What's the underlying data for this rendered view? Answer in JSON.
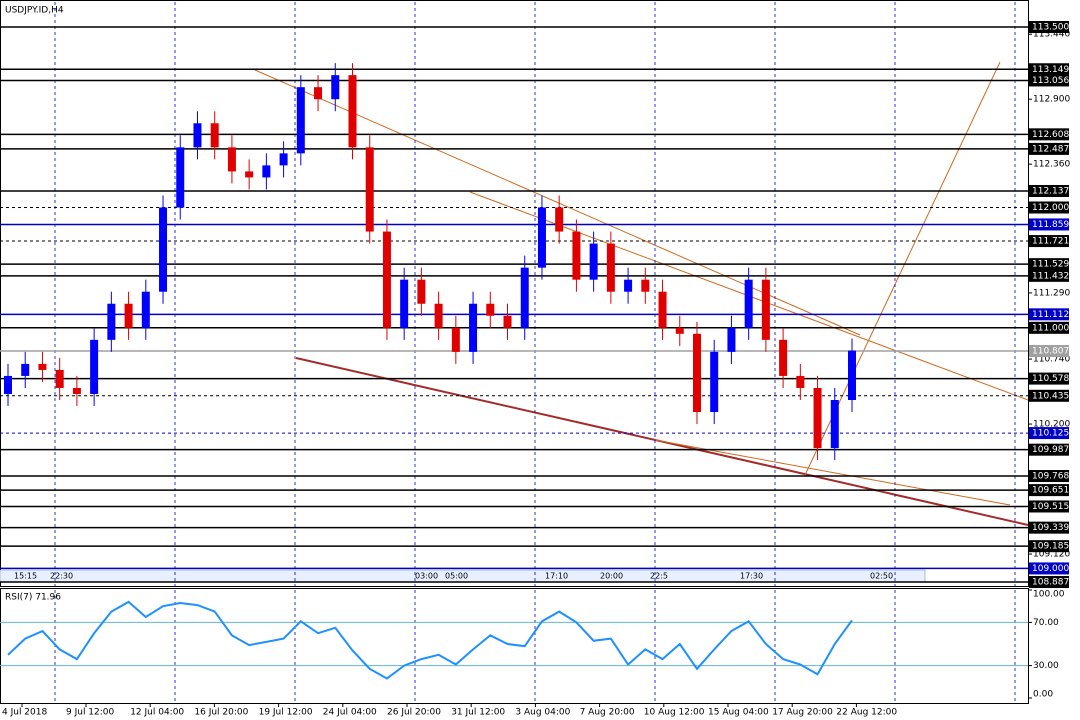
{
  "chart_data": {
    "type": "candlestick",
    "title": "USDJPY.ID,H4",
    "open": [
      110.45,
      110.6,
      110.7,
      110.65,
      110.5,
      110.45,
      110.9,
      111.2,
      111.0,
      111.3,
      112.0,
      112.5,
      112.7,
      112.5,
      112.3,
      112.25,
      112.35,
      112.45,
      113.0,
      112.9,
      113.1,
      112.5,
      111.8,
      111.0,
      111.4,
      111.2,
      111.0,
      110.8,
      111.2,
      111.1,
      111.0,
      111.5,
      112.0,
      111.8,
      111.4,
      111.7,
      111.3,
      111.4,
      111.3,
      111.0,
      110.95,
      110.3,
      110.8,
      111.0,
      111.4,
      110.9,
      110.6,
      110.5,
      110.0,
      110.4
    ],
    "high": [
      110.7,
      110.8,
      110.8,
      110.75,
      110.6,
      111.0,
      111.3,
      111.3,
      111.4,
      112.1,
      112.6,
      112.8,
      112.8,
      112.6,
      112.4,
      112.45,
      112.55,
      113.1,
      113.1,
      113.2,
      113.2,
      112.6,
      111.9,
      111.5,
      111.5,
      111.3,
      111.1,
      111.3,
      111.3,
      111.2,
      111.6,
      112.1,
      112.1,
      111.9,
      111.8,
      111.8,
      111.5,
      111.5,
      111.4,
      111.1,
      111.05,
      110.9,
      111.1,
      111.5,
      111.5,
      111.0,
      110.7,
      110.6,
      110.5,
      110.91
    ],
    "low": [
      110.35,
      110.5,
      110.55,
      110.4,
      110.35,
      110.35,
      110.8,
      110.9,
      110.9,
      111.2,
      111.9,
      112.4,
      112.4,
      112.2,
      112.15,
      112.15,
      112.25,
      112.35,
      112.8,
      112.8,
      112.4,
      111.7,
      110.9,
      110.9,
      111.1,
      110.9,
      110.7,
      110.7,
      111.0,
      110.9,
      110.9,
      111.4,
      111.7,
      111.3,
      111.3,
      111.2,
      111.2,
      111.2,
      110.9,
      110.85,
      110.2,
      110.2,
      110.7,
      110.9,
      110.8,
      110.5,
      110.4,
      109.9,
      109.9,
      110.3
    ],
    "close": [
      110.6,
      110.7,
      110.65,
      110.5,
      110.45,
      110.9,
      111.2,
      111.0,
      111.3,
      112.0,
      112.5,
      112.7,
      112.5,
      112.3,
      112.25,
      112.35,
      112.45,
      113.0,
      112.9,
      113.1,
      112.5,
      111.8,
      111.0,
      111.4,
      111.2,
      111.0,
      110.8,
      111.2,
      111.1,
      111.0,
      111.5,
      112.0,
      111.8,
      111.4,
      111.7,
      111.3,
      111.4,
      111.3,
      111.0,
      110.95,
      110.3,
      110.8,
      111.0,
      111.4,
      110.9,
      110.6,
      110.5,
      110.0,
      110.4,
      110.81
    ],
    "up_color": "#0000ff",
    "down_color": "#e00000",
    "ylim": [
      108.854,
      113.708
    ],
    "yticks": [
      {
        "value": 113.44,
        "label": "113.440"
      },
      {
        "value": 112.9,
        "label": "112.900"
      },
      {
        "value": 112.36,
        "label": "112.360"
      },
      {
        "value": 111.29,
        "label": "111.290"
      },
      {
        "value": 110.74,
        "label": "110.740"
      },
      {
        "value": 110.2,
        "label": "110.200"
      },
      {
        "value": 109.12,
        "label": "109.120"
      }
    ],
    "levels": [
      {
        "value": 113.5,
        "label": "113.500",
        "color": "#000000",
        "style": "solid"
      },
      {
        "value": 113.149,
        "label": "113.149",
        "color": "#000000",
        "style": "solid"
      },
      {
        "value": 113.056,
        "label": "113.056",
        "color": "#000000",
        "style": "solid"
      },
      {
        "value": 112.608,
        "label": "112.608",
        "color": "#000000",
        "style": "solid"
      },
      {
        "value": 112.487,
        "label": "112.487",
        "color": "#000000",
        "style": "solid"
      },
      {
        "value": 112.137,
        "label": "112.137",
        "color": "#000000",
        "style": "solid"
      },
      {
        "value": 112.0,
        "label": "112.000",
        "color": "#000000",
        "style": "dashed"
      },
      {
        "value": 111.859,
        "label": "111.859",
        "color": "#0000c8",
        "style": "solid"
      },
      {
        "value": 111.721,
        "label": "111.721",
        "color": "#000000",
        "style": "dashed"
      },
      {
        "value": 111.529,
        "label": "111.529",
        "color": "#000000",
        "style": "solid"
      },
      {
        "value": 111.432,
        "label": "111.432",
        "color": "#000000",
        "style": "solid"
      },
      {
        "value": 111.112,
        "label": "111.112",
        "color": "#0000c8",
        "style": "solid"
      },
      {
        "value": 111.0,
        "label": "111.000",
        "color": "#000000",
        "style": "solid"
      },
      {
        "value": 110.807,
        "label": "110.807",
        "color": "#a0a0a0",
        "style": "solid"
      },
      {
        "value": 110.578,
        "label": "110.578",
        "color": "#000000",
        "style": "solid"
      },
      {
        "value": 110.435,
        "label": "110.435",
        "color": "#000000",
        "style": "dashed"
      },
      {
        "value": 110.125,
        "label": "110.125",
        "color": "#0000c8",
        "style": "dashed"
      },
      {
        "value": 109.987,
        "label": "109.987",
        "color": "#000000",
        "style": "solid"
      },
      {
        "value": 109.768,
        "label": "109.768",
        "color": "#000000",
        "style": "solid"
      },
      {
        "value": 109.651,
        "label": "109.651",
        "color": "#000000",
        "style": "solid"
      },
      {
        "value": 109.515,
        "label": "109.515",
        "color": "#000000",
        "style": "solid"
      },
      {
        "value": 109.339,
        "label": "109.339",
        "color": "#000000",
        "style": "solid"
      },
      {
        "value": 109.185,
        "label": "109.185",
        "color": "#000000",
        "style": "solid"
      },
      {
        "value": 109.0,
        "label": "109.000",
        "color": "#0000c8",
        "style": "solid"
      },
      {
        "value": 108.887,
        "label": "108.887",
        "color": "#000000",
        "style": "solid"
      }
    ],
    "time_markers": [
      "15:15",
      "22:30",
      "03:00",
      "05:00",
      "17:10",
      "20:00",
      "22:5",
      "17:30",
      "02:50"
    ],
    "x_labels": [
      "4 Jul 2018",
      "9 Jul 12:00",
      "12 Jul 04:00",
      "16 Jul 20:00",
      "19 Jul 12:00",
      "24 Jul 04:00",
      "26 Jul 20:00",
      "31 Jul 12:00",
      "3 Aug 04:00",
      "7 Aug 20:00",
      "10 Aug 12:00",
      "15 Aug 04:00",
      "17 Aug 20:00",
      "22 Aug 12:00"
    ],
    "rsi": {
      "title": "RSI(7) 71.96",
      "color": "#1e90ff",
      "values": [
        40,
        55,
        62,
        45,
        36,
        60,
        80,
        89,
        75,
        85,
        88,
        86,
        80,
        58,
        49,
        52,
        55,
        71,
        60,
        65,
        44,
        27,
        18,
        30,
        36,
        40,
        31,
        45,
        58,
        50,
        48,
        71,
        80,
        70,
        53,
        55,
        31,
        45,
        36,
        50,
        27,
        45,
        62,
        71,
        50,
        36,
        31,
        22,
        50,
        71.96
      ],
      "ylim": [
        0,
        100
      ],
      "yticks": [
        {
          "value": 100,
          "label": "100.00"
        },
        {
          "value": 70,
          "label": "70.00"
        },
        {
          "value": 30,
          "label": "30.00"
        },
        {
          "value": 0,
          "label": "0.00"
        }
      ],
      "levels": [
        70,
        30
      ]
    }
  }
}
